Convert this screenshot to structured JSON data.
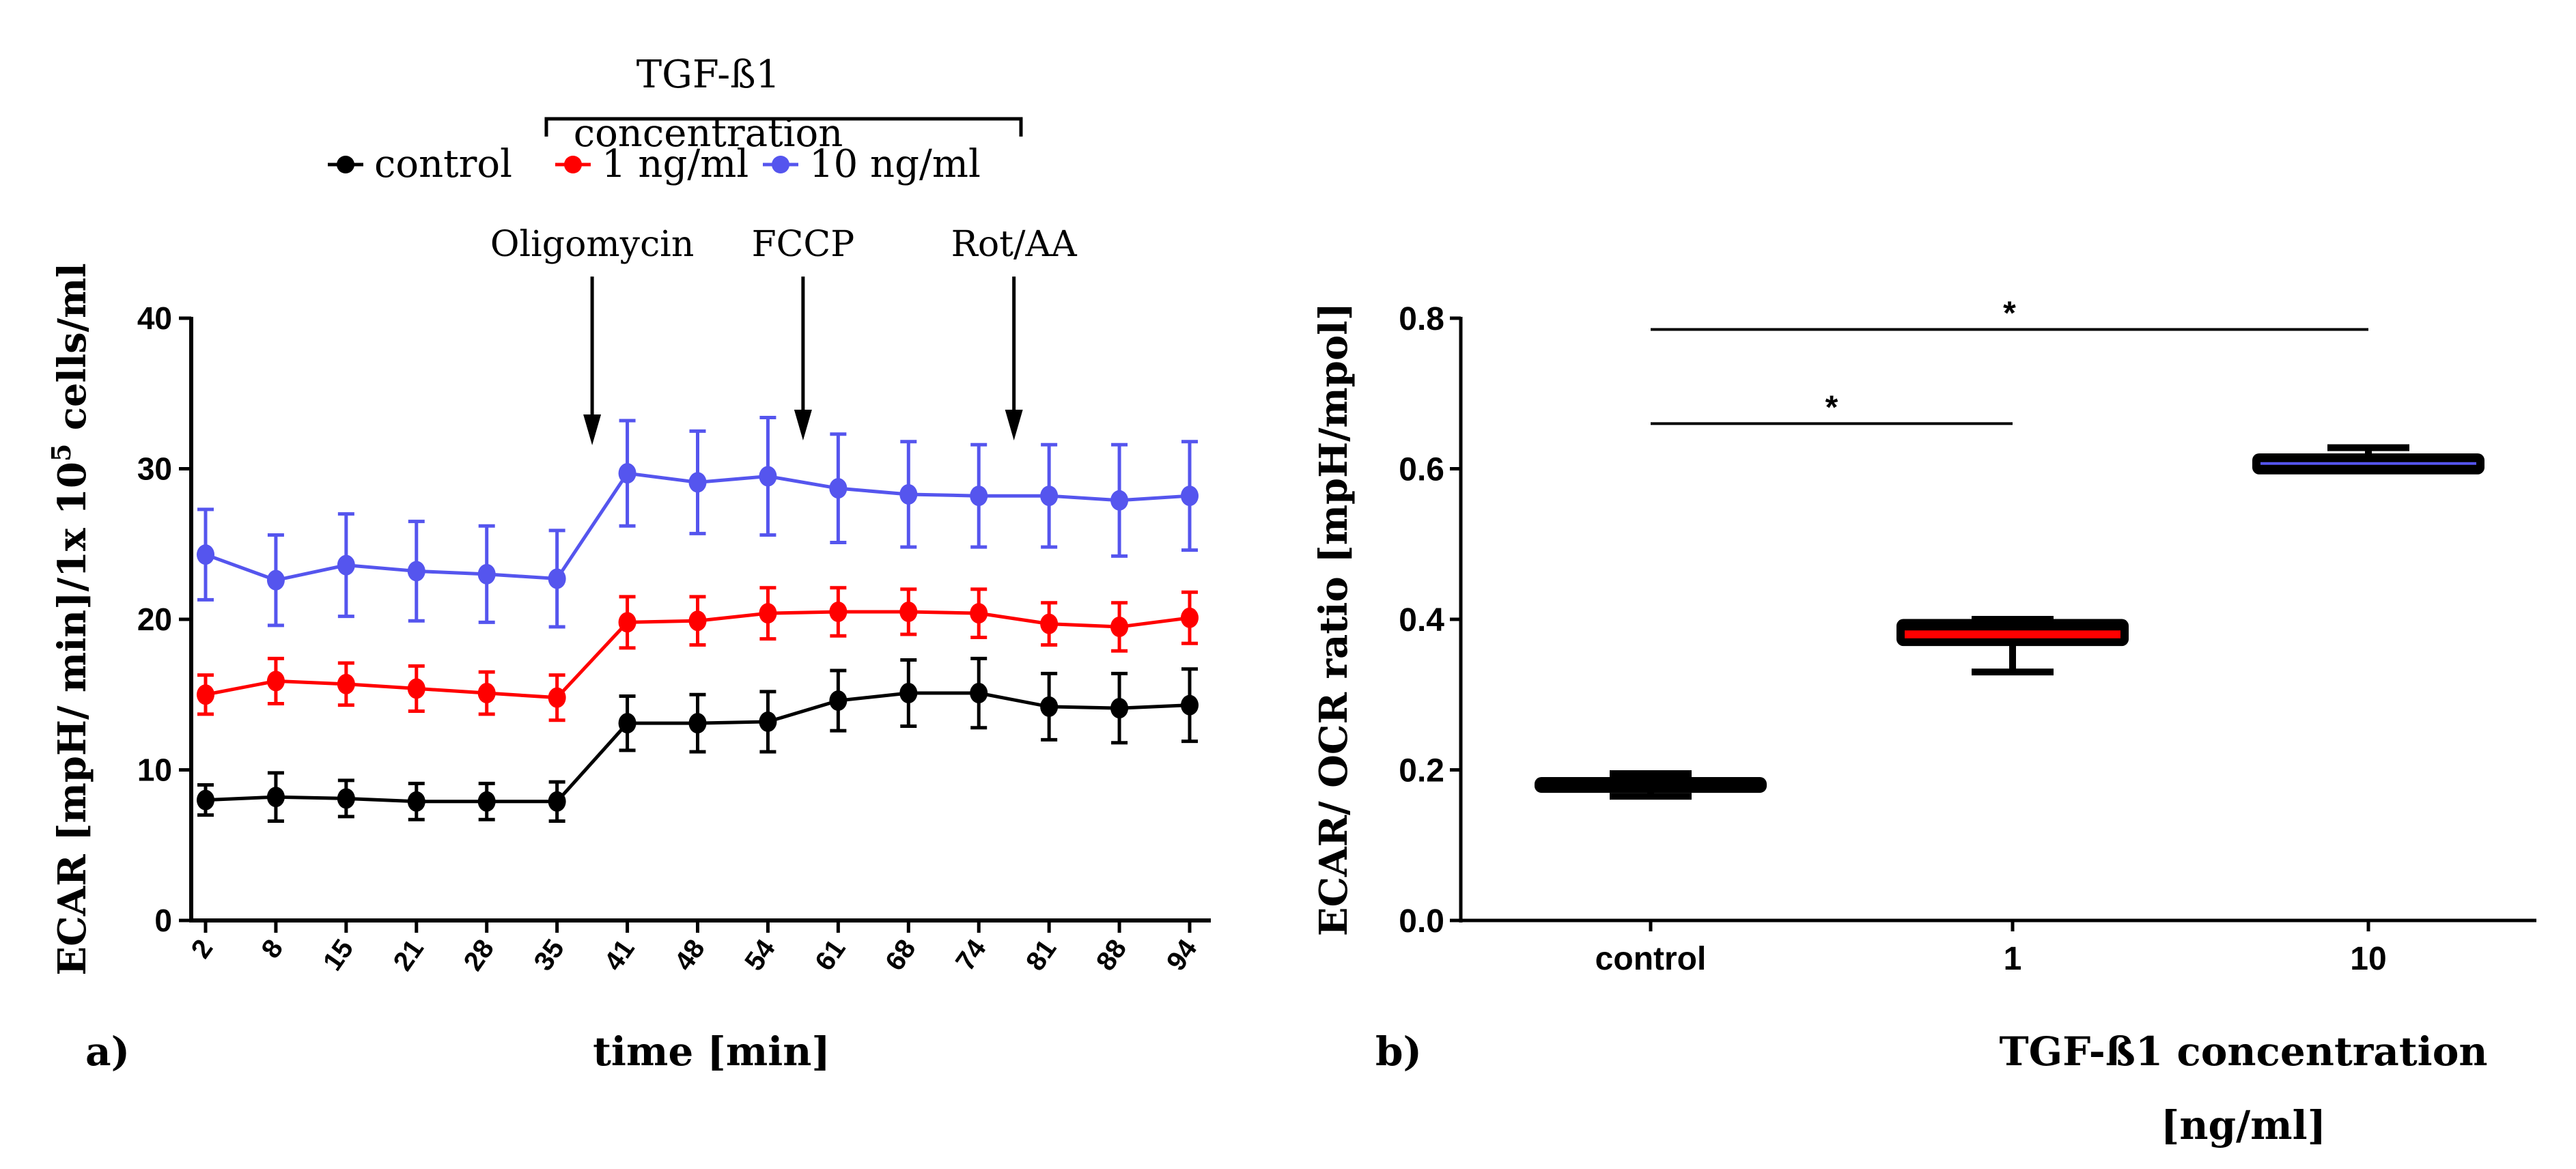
{
  "chart_data": [
    {
      "type": "line",
      "panel_label": "a)",
      "xlabel": "time [min]",
      "ylabel": "ECAR [mpH/ min]/1x 10",
      "ylabel_sup": "5",
      "ylabel_tail": " cells/ml",
      "ylim": [
        0,
        40
      ],
      "yticks": [
        "0",
        "10",
        "20",
        "30",
        "40"
      ],
      "x": [
        "2",
        "8",
        "15",
        "21",
        "28",
        "35",
        "41",
        "48",
        "54",
        "61",
        "68",
        "74",
        "81",
        "88",
        "94"
      ],
      "legend": {
        "group_title_line1": "TGF-ß1",
        "group_title_line2": "concentration",
        "placement": "top"
      },
      "series": [
        {
          "name": "control",
          "color": "#000000",
          "values": [
            8.0,
            8.2,
            8.1,
            7.9,
            7.9,
            7.9,
            13.1,
            13.1,
            13.2,
            14.6,
            15.1,
            15.1,
            14.2,
            14.1,
            14.3
          ],
          "errors": [
            1.0,
            1.6,
            1.2,
            1.2,
            1.2,
            1.3,
            1.8,
            1.9,
            2.0,
            2.0,
            2.2,
            2.3,
            2.2,
            2.3,
            2.4
          ]
        },
        {
          "name": "1 ng/ml",
          "color": "#ff0000",
          "values": [
            15.0,
            15.9,
            15.7,
            15.4,
            15.1,
            14.8,
            19.8,
            19.9,
            20.4,
            20.5,
            20.5,
            20.4,
            19.7,
            19.5,
            20.1
          ],
          "errors": [
            1.3,
            1.5,
            1.4,
            1.5,
            1.4,
            1.5,
            1.7,
            1.6,
            1.7,
            1.6,
            1.5,
            1.6,
            1.4,
            1.6,
            1.7
          ]
        },
        {
          "name": "10 ng/ml",
          "color": "#5555ee",
          "values": [
            24.3,
            22.6,
            23.6,
            23.2,
            23.0,
            22.7,
            29.7,
            29.1,
            29.5,
            28.7,
            28.3,
            28.2,
            28.2,
            27.9,
            28.2
          ],
          "errors": [
            3.0,
            3.0,
            3.4,
            3.3,
            3.2,
            3.2,
            3.5,
            3.4,
            3.9,
            3.6,
            3.5,
            3.4,
            3.4,
            3.7,
            3.6
          ]
        }
      ],
      "annotations": [
        {
          "text": "Oligomycin",
          "at_between": [
            35,
            41
          ]
        },
        {
          "text": "FCCP",
          "at_between": [
            54,
            61
          ]
        },
        {
          "text": "Rot/AA",
          "at_between": [
            74,
            81
          ]
        }
      ]
    },
    {
      "type": "box",
      "panel_label": "b)",
      "xlabel_line1": "TGF-ß1 concentration",
      "xlabel_line2": "[ng/ml]",
      "ylabel": "ECAR/ OCR ratio [mpH/mpol]",
      "ylim": [
        0,
        0.8
      ],
      "yticks": [
        "0.0",
        "0.2",
        "0.4",
        "0.6",
        "0.8"
      ],
      "categories": [
        "control",
        "1",
        "10"
      ],
      "boxes": [
        {
          "min": 0.165,
          "q1": 0.175,
          "median": 0.18,
          "q3": 0.185,
          "max": 0.195,
          "fill": "#000000"
        },
        {
          "min": 0.33,
          "q1": 0.37,
          "median": 0.38,
          "q3": 0.395,
          "max": 0.4,
          "fill": "#ff0000"
        },
        {
          "min": 0.598,
          "q1": 0.598,
          "median": 0.607,
          "q3": 0.615,
          "max": 0.628,
          "fill": "#5555ee"
        }
      ],
      "significance": [
        {
          "from": "control",
          "to": "1",
          "y": 0.66,
          "label": "*"
        },
        {
          "from": "control",
          "to": "10",
          "y": 0.785,
          "label": "*"
        }
      ]
    }
  ]
}
